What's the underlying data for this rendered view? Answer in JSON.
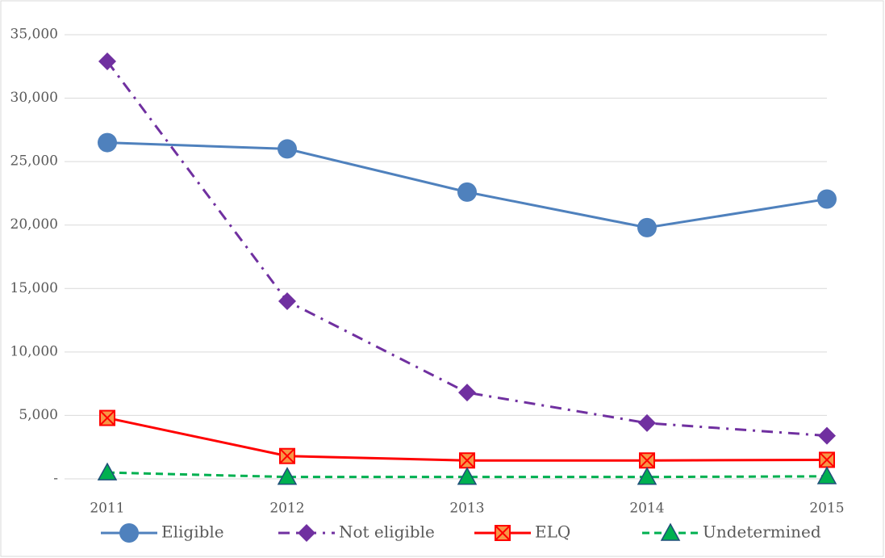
{
  "chart_data": {
    "type": "line",
    "categories": [
      "2011",
      "2012",
      "2013",
      "2014",
      "2015"
    ],
    "series": [
      {
        "name": "Eligible",
        "color": "#4f81bd",
        "marker": "circle",
        "dash": "solid",
        "values": [
          26500,
          26000,
          22600,
          19800,
          22050
        ]
      },
      {
        "name": "Not eligible",
        "color": "#7030a0",
        "marker": "diamond",
        "dash": "dashdot",
        "values": [
          32900,
          14000,
          6800,
          4400,
          3400
        ]
      },
      {
        "name": "ELQ",
        "color": "#ff0000",
        "marker": "square-x",
        "dash": "solid",
        "values": [
          4800,
          1800,
          1450,
          1450,
          1500
        ]
      },
      {
        "name": "Undetermined",
        "color": "#00b050",
        "marker": "triangle",
        "dash": "dashed",
        "values": [
          500,
          150,
          150,
          150,
          200
        ]
      }
    ],
    "ylim": [
      0,
      35000
    ],
    "yticks": [
      {
        "value": 0,
        "label": "-"
      },
      {
        "value": 5000,
        "label": "5,000"
      },
      {
        "value": 10000,
        "label": "10,000"
      },
      {
        "value": 15000,
        "label": "15,000"
      },
      {
        "value": 20000,
        "label": "20,000"
      },
      {
        "value": 25000,
        "label": "25,000"
      },
      {
        "value": 30000,
        "label": "30,000"
      },
      {
        "value": 35000,
        "label": "35,000"
      }
    ],
    "grid": true,
    "legend": "bottom"
  }
}
